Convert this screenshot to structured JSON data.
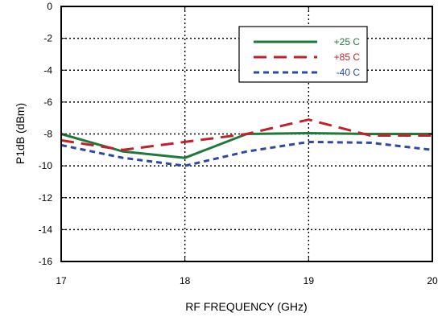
{
  "chart_data": {
    "type": "line",
    "title": "",
    "xlabel": "RF FREQUENCY (GHz)",
    "ylabel": "P1dB (dBm)",
    "xlim": [
      17,
      20
    ],
    "ylim": [
      -16,
      0
    ],
    "xticks": [
      17,
      18,
      19,
      20
    ],
    "yticks": [
      0,
      -2,
      -4,
      -6,
      -8,
      -10,
      -12,
      -14,
      -16
    ],
    "xtick_labels": [
      "17",
      "18",
      "19",
      "20"
    ],
    "ytick_labels": [
      "0",
      "-2",
      "-4",
      "-6",
      "-8",
      "-10",
      "-12",
      "-14",
      "-16"
    ],
    "grid": true,
    "legend_position": "top-right",
    "series": [
      {
        "name": "+25 C",
        "color": "#1f7a3a",
        "dash": "solid",
        "x": [
          17,
          17.5,
          18,
          18.5,
          19,
          19.5,
          20
        ],
        "y": [
          -8.0,
          -9.1,
          -9.5,
          -8.0,
          -7.95,
          -8.0,
          -8.0
        ]
      },
      {
        "name": "+85 C",
        "color": "#c0212b",
        "dash": "long-dash",
        "x": [
          17,
          17.5,
          18,
          18.5,
          19,
          19.5,
          20
        ],
        "y": [
          -8.4,
          -9.0,
          -8.5,
          -8.0,
          -7.1,
          -8.1,
          -8.1
        ]
      },
      {
        "name": "-40 C",
        "color": "#2b4aa0",
        "dash": "short-dash",
        "x": [
          17,
          17.5,
          18,
          18.5,
          19,
          19.5,
          20
        ],
        "y": [
          -8.7,
          -9.5,
          -10.0,
          -9.1,
          -8.5,
          -8.55,
          -9.0
        ]
      }
    ]
  }
}
